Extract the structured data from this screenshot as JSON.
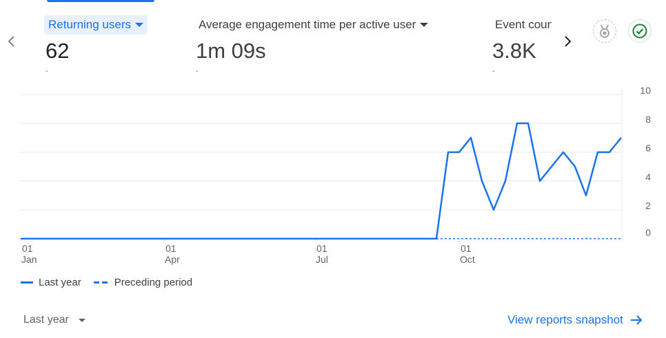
{
  "metrics": [
    {
      "label": "Returning users",
      "value": "62",
      "delta": "-",
      "active": true
    },
    {
      "label": "Average engagement time per active user",
      "value": "1m 09s",
      "delta": "-",
      "active": false
    },
    {
      "label": "Event count",
      "value": "3.8K",
      "delta": "-",
      "active": false
    }
  ],
  "icons": {
    "prev": "chevron-left-icon",
    "next": "chevron-right-icon",
    "badge_1": "medal-icon",
    "badge_2": "check-circle-icon",
    "snapshot_arrow": "arrow-right-icon"
  },
  "colors": {
    "accent": "#1a73e8",
    "grid": "#e8eaed",
    "success": "#188038"
  },
  "chart_data": {
    "type": "line",
    "x_tick_labels": [
      {
        "day": "01",
        "month": "Jan"
      },
      {
        "day": "01",
        "month": "Apr"
      },
      {
        "day": "01",
        "month": "Jul"
      },
      {
        "day": "01",
        "month": "Oct"
      }
    ],
    "y_ticks": [
      "10",
      "8",
      "6",
      "4",
      "2",
      "0"
    ],
    "ylim": [
      0,
      10
    ],
    "series": [
      {
        "name": "Last year",
        "style": "solid",
        "values": [
          0,
          6,
          6,
          7,
          4,
          2,
          4,
          8,
          8,
          4,
          5,
          6,
          5,
          3,
          6,
          6,
          7
        ],
        "note": "zero from 01 Jan until late September, then weekly values"
      },
      {
        "name": "Preceding period",
        "style": "dashed",
        "values": [
          0,
          0
        ]
      }
    ],
    "grid": true,
    "legend_position": "bottom-left"
  },
  "legend": {
    "last_year": "Last year",
    "preceding": "Preceding period"
  },
  "footer": {
    "range_label": "Last year",
    "snapshot_link": "View reports snapshot"
  }
}
